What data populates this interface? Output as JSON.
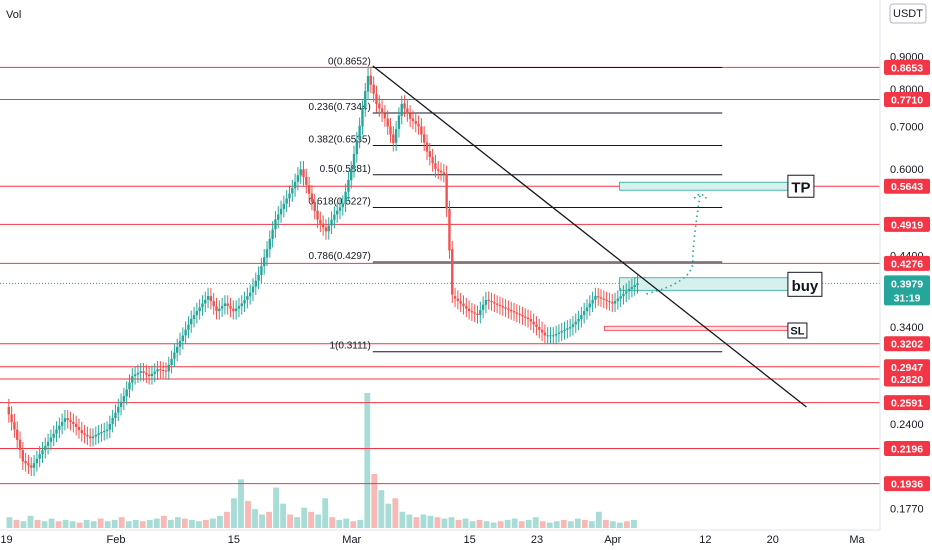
{
  "header": {
    "vol_label": "Vol",
    "currency_button": "USDT"
  },
  "chart_data": {
    "type": "candlestick",
    "instrument_quote": "USDT",
    "y_scale": "log",
    "ylim": [
      0.165,
      0.99
    ],
    "x_ticks": [
      {
        "label": "19",
        "day": -13
      },
      {
        "label": "Feb",
        "day": 0
      },
      {
        "label": "15",
        "day": 14
      },
      {
        "label": "Mar",
        "day": 28
      },
      {
        "label": "15",
        "day": 42
      },
      {
        "label": "23",
        "day": 50
      },
      {
        "label": "Apr",
        "day": 59
      },
      {
        "label": "12",
        "day": 70
      },
      {
        "label": "20",
        "day": 78
      },
      {
        "label": "Ma",
        "day": 88
      }
    ],
    "y_ticks": [
      "0.9000",
      "0.8000",
      "0.7000",
      "0.6000",
      "0.4400",
      "0.3400",
      "0.2400",
      "0.1770"
    ],
    "y_tick_values": [
      0.9,
      0.8,
      0.7,
      0.6,
      0.44,
      0.34,
      0.24,
      0.177
    ],
    "horizontal_levels": [
      "0.8653",
      "0.7710",
      "0.5643",
      "0.4919",
      "0.4276",
      "0.3202",
      "0.2947",
      "0.2820",
      "0.2591",
      "0.2196",
      "0.1936"
    ],
    "horizontal_level_values": [
      0.8653,
      0.771,
      0.5643,
      0.4919,
      0.4276,
      0.3202,
      0.2947,
      0.282,
      0.2591,
      0.2196,
      0.1936
    ],
    "current_price": {
      "label": "0.3979",
      "value": 0.3979,
      "countdown": "31:19"
    },
    "fibonacci": [
      {
        "label": "0(0.8652)",
        "value": 0.8652
      },
      {
        "label": "0.236(0.7344)",
        "value": 0.7344
      },
      {
        "label": "0.382(0.6535)",
        "value": 0.6535
      },
      {
        "label": "0.5(0.5881)",
        "value": 0.5881
      },
      {
        "label": "0.618(0.5227)",
        "value": 0.5227
      },
      {
        "label": "0.786(0.4297)",
        "value": 0.4297
      },
      {
        "label": "1(0.3111)",
        "value": 0.3111
      }
    ],
    "annotations": {
      "tp": "TP",
      "buy": "buy",
      "sl": "SL"
    },
    "colors": {
      "up": "#26a69a",
      "down": "#ef5350",
      "level": "#f23645",
      "fib": "#131722",
      "zone_fill": "#d6f0ee",
      "zone_edge": "#26a69a",
      "price_tag": "#26a69a"
    },
    "price_path": [
      [
        -13,
        0.255
      ],
      [
        -12,
        0.235
      ],
      [
        -11,
        0.21
      ],
      [
        -10,
        0.205
      ],
      [
        -9,
        0.215
      ],
      [
        -8,
        0.225
      ],
      [
        -7,
        0.235
      ],
      [
        -6,
        0.245
      ],
      [
        -5,
        0.24
      ],
      [
        -4,
        0.232
      ],
      [
        -3,
        0.228
      ],
      [
        -2,
        0.232
      ],
      [
        -1,
        0.235
      ],
      [
        0,
        0.25
      ],
      [
        1,
        0.265
      ],
      [
        2,
        0.285
      ],
      [
        3,
        0.29
      ],
      [
        4,
        0.285
      ],
      [
        5,
        0.292
      ],
      [
        6,
        0.29
      ],
      [
        7,
        0.31
      ],
      [
        8,
        0.33
      ],
      [
        9,
        0.35
      ],
      [
        10,
        0.365
      ],
      [
        11,
        0.38
      ],
      [
        12,
        0.36
      ],
      [
        13,
        0.37
      ],
      [
        14,
        0.36
      ],
      [
        15,
        0.37
      ],
      [
        16,
        0.385
      ],
      [
        17,
        0.41
      ],
      [
        18,
        0.45
      ],
      [
        19,
        0.5
      ],
      [
        20,
        0.53
      ],
      [
        21,
        0.56
      ],
      [
        22,
        0.6
      ],
      [
        23,
        0.55
      ],
      [
        24,
        0.5
      ],
      [
        25,
        0.48
      ],
      [
        26,
        0.51
      ],
      [
        27,
        0.53
      ],
      [
        28,
        0.6
      ],
      [
        29,
        0.7
      ],
      [
        30,
        0.84
      ],
      [
        31,
        0.76
      ],
      [
        32,
        0.72
      ],
      [
        33,
        0.66
      ],
      [
        34,
        0.76
      ],
      [
        35,
        0.72
      ],
      [
        36,
        0.7
      ],
      [
        37,
        0.64
      ],
      [
        38,
        0.6
      ],
      [
        39,
        0.59
      ],
      [
        40,
        0.38
      ],
      [
        41,
        0.37
      ],
      [
        42,
        0.36
      ],
      [
        43,
        0.355
      ],
      [
        44,
        0.375
      ],
      [
        45,
        0.37
      ],
      [
        46,
        0.365
      ],
      [
        47,
        0.36
      ],
      [
        48,
        0.355
      ],
      [
        49,
        0.35
      ],
      [
        50,
        0.34
      ],
      [
        51,
        0.33
      ],
      [
        52,
        0.33
      ],
      [
        53,
        0.335
      ],
      [
        54,
        0.34
      ],
      [
        55,
        0.35
      ],
      [
        56,
        0.365
      ],
      [
        57,
        0.38
      ],
      [
        58,
        0.375
      ],
      [
        59,
        0.37
      ],
      [
        60,
        0.38
      ],
      [
        61,
        0.39
      ],
      [
        62,
        0.398
      ]
    ],
    "volume_relative": [
      0.08,
      0.06,
      0.05,
      0.09,
      0.06,
      0.05,
      0.07,
      0.05,
      0.06,
      0.05,
      0.04,
      0.06,
      0.05,
      0.07,
      0.05,
      0.06,
      0.08,
      0.05,
      0.06,
      0.05,
      0.06,
      0.07,
      0.09,
      0.06,
      0.08,
      0.07,
      0.06,
      0.05,
      0.06,
      0.07,
      0.09,
      0.12,
      0.22,
      0.36,
      0.2,
      0.14,
      0.1,
      0.12,
      0.3,
      0.18,
      0.1,
      0.08,
      0.15,
      0.12,
      0.1,
      0.22,
      0.08,
      0.06,
      0.07,
      0.05,
      0.06,
      1.0,
      0.4,
      0.28,
      0.18,
      0.22,
      0.12,
      0.1,
      0.08,
      0.1,
      0.09,
      0.08,
      0.07,
      0.08,
      0.06,
      0.07,
      0.05,
      0.06,
      0.05,
      0.04,
      0.05,
      0.06,
      0.07,
      0.05,
      0.06,
      0.08,
      0.05,
      0.04,
      0.05,
      0.06,
      0.05,
      0.07,
      0.06,
      0.05,
      0.12,
      0.06,
      0.05,
      0.04,
      0.05,
      0.06
    ]
  }
}
